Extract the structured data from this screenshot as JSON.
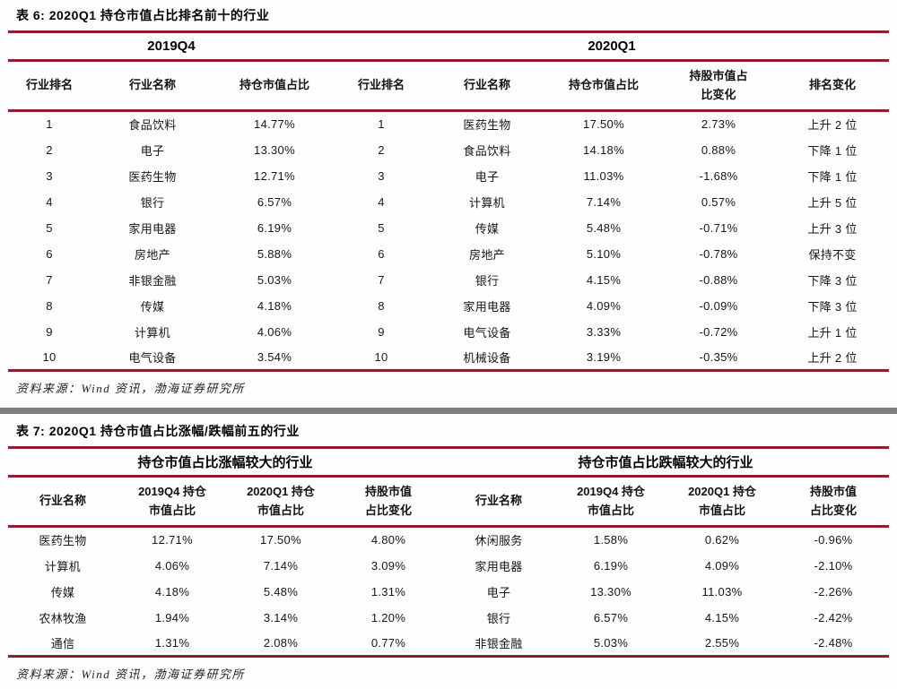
{
  "colors": {
    "rule_red": "#8a1f2b",
    "divider_gray": "#7e7e7e",
    "background": "#ffffff"
  },
  "table6": {
    "title": "表 6: 2020Q1 持仓市值占比排名前十的行业",
    "group_headers": [
      "2019Q4",
      "2020Q1"
    ],
    "columns": [
      "行业排名",
      "行业名称",
      "持仓市值占比",
      "行业排名",
      "行业名称",
      "持仓市值占比",
      "持股市值占\n比变化",
      "排名变化"
    ],
    "rows": [
      [
        "1",
        "食品饮料",
        "14.77%",
        "1",
        "医药生物",
        "17.50%",
        "2.73%",
        "上升 2 位"
      ],
      [
        "2",
        "电子",
        "13.30%",
        "2",
        "食品饮料",
        "14.18%",
        "0.88%",
        "下降 1 位"
      ],
      [
        "3",
        "医药生物",
        "12.71%",
        "3",
        "电子",
        "11.03%",
        "-1.68%",
        "下降 1 位"
      ],
      [
        "4",
        "银行",
        "6.57%",
        "4",
        "计算机",
        "7.14%",
        "0.57%",
        "上升 5 位"
      ],
      [
        "5",
        "家用电器",
        "6.19%",
        "5",
        "传媒",
        "5.48%",
        "-0.71%",
        "上升 3 位"
      ],
      [
        "6",
        "房地产",
        "5.88%",
        "6",
        "房地产",
        "5.10%",
        "-0.78%",
        "保持不变"
      ],
      [
        "7",
        "非银金融",
        "5.03%",
        "7",
        "银行",
        "4.15%",
        "-0.88%",
        "下降 3 位"
      ],
      [
        "8",
        "传媒",
        "4.18%",
        "8",
        "家用电器",
        "4.09%",
        "-0.09%",
        "下降 3 位"
      ],
      [
        "9",
        "计算机",
        "4.06%",
        "9",
        "电气设备",
        "3.33%",
        "-0.72%",
        "上升 1 位"
      ],
      [
        "10",
        "电气设备",
        "3.54%",
        "10",
        "机械设备",
        "3.19%",
        "-0.35%",
        "上升 2 位"
      ]
    ],
    "source": "资料来源：Wind 资讯，渤海证券研究所"
  },
  "table7": {
    "title": "表 7: 2020Q1 持仓市值占比涨幅/跌幅前五的行业",
    "group_headers": [
      "持仓市值占比涨幅较大的行业",
      "持仓市值占比跌幅较大的行业"
    ],
    "columns": [
      "行业名称",
      "2019Q4 持仓\n市值占比",
      "2020Q1 持仓\n市值占比",
      "持股市值\n占比变化",
      "行业名称",
      "2019Q4 持仓\n市值占比",
      "2020Q1 持仓\n市值占比",
      "持股市值\n占比变化"
    ],
    "rows": [
      [
        "医药生物",
        "12.71%",
        "17.50%",
        "4.80%",
        "休闲服务",
        "1.58%",
        "0.62%",
        "-0.96%"
      ],
      [
        "计算机",
        "4.06%",
        "7.14%",
        "3.09%",
        "家用电器",
        "6.19%",
        "4.09%",
        "-2.10%"
      ],
      [
        "传媒",
        "4.18%",
        "5.48%",
        "1.31%",
        "电子",
        "13.30%",
        "11.03%",
        "-2.26%"
      ],
      [
        "农林牧渔",
        "1.94%",
        "3.14%",
        "1.20%",
        "银行",
        "6.57%",
        "4.15%",
        "-2.42%"
      ],
      [
        "通信",
        "1.31%",
        "2.08%",
        "0.77%",
        "非银金融",
        "5.03%",
        "2.55%",
        "-2.48%"
      ]
    ],
    "source": "资料来源：Wind 资讯，渤海证券研究所"
  }
}
